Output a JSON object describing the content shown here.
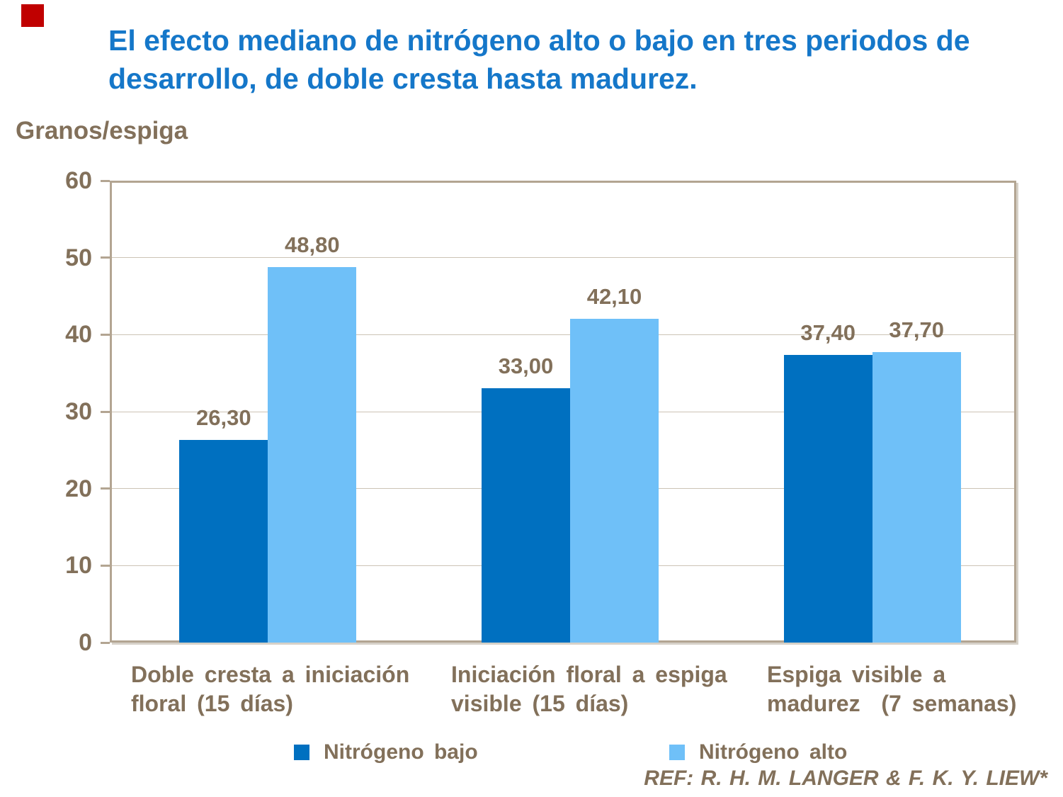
{
  "decoration": {
    "accent_square_color": "#c00000"
  },
  "title": "El efecto mediano de nitrógeno alto o bajo en tres periodos de desarrollo, de doble cresta hasta madurez.",
  "y_axis_title": "Granos/espiga",
  "reference": "REF: R. H. M. LANGER & F. K. Y. LIEW*",
  "chart_data": {
    "type": "bar",
    "title": "El efecto mediano de nitrógeno alto o bajo en tres periodos de desarrollo, de doble cresta hasta madurez.",
    "ylabel": "Granos/espiga",
    "ylim": [
      0,
      60
    ],
    "yticks": [
      0,
      10,
      20,
      30,
      40,
      50,
      60
    ],
    "grid": true,
    "legend_position": "bottom",
    "categories": [
      "Doble cresta a iniciación floral (15 días)",
      "Iniciación floral a espiga visible (15 días)",
      "Espiga visible a madurez (7 semanas)"
    ],
    "x_tick_display_lines": [
      [
        "Doble cresta a iniciación",
        "floral (15 días)"
      ],
      [
        "Iniciación floral a espiga",
        "visible (15 días)"
      ],
      [
        "Espiga visible a",
        "madurez  (7 semanas)"
      ]
    ],
    "series": [
      {
        "name": "Nitrógeno bajo",
        "color": "#0070c0",
        "values": [
          26.3,
          33.0,
          37.4
        ],
        "labels": [
          "26,30",
          "33,00",
          "37,40"
        ]
      },
      {
        "name": "Nitrógeno alto",
        "color": "#6fc0f8",
        "values": [
          48.8,
          42.1,
          37.7
        ],
        "labels": [
          "48,80",
          "42,10",
          "37,70"
        ]
      }
    ]
  },
  "colors": {
    "title_text": "#1577c9",
    "axis_text": "#82705a",
    "plot_border": "#b3a592",
    "gridline": "#ccc3b5"
  }
}
